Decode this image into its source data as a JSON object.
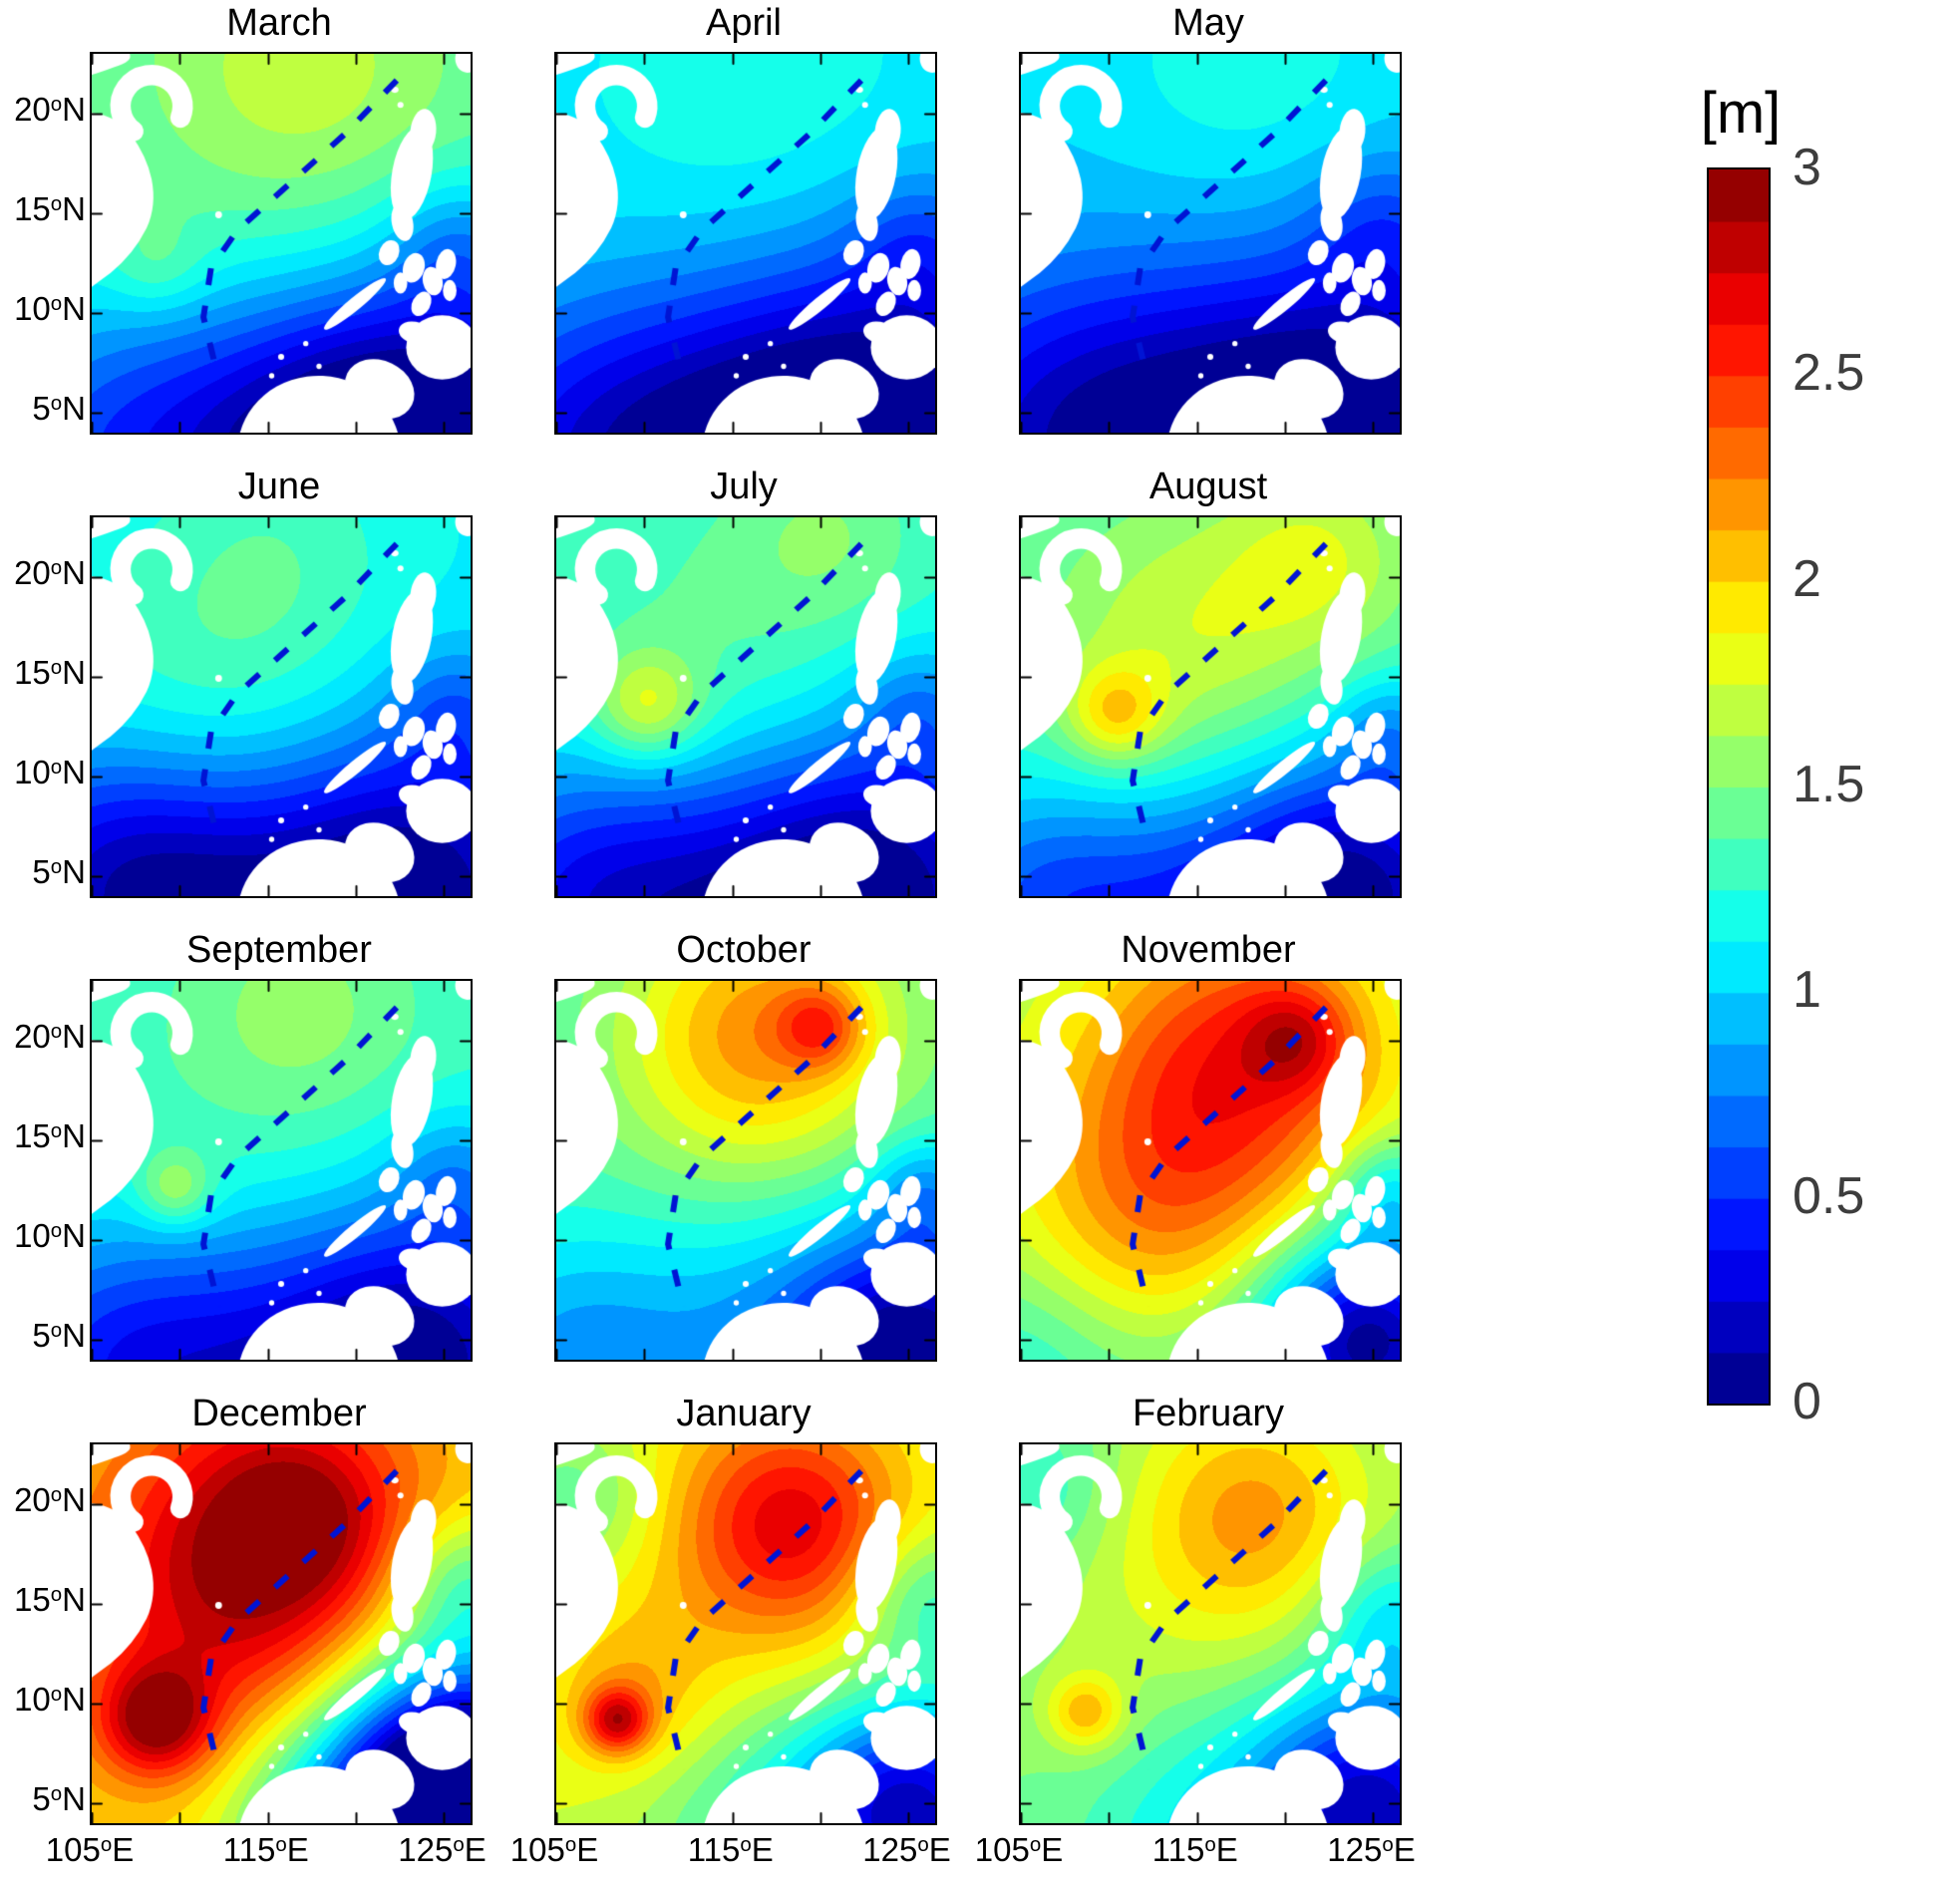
{
  "chart_data": {
    "type": "heatmap",
    "title": "",
    "unit": "m",
    "colormap": "jet",
    "coords_note": "field_model gaussians given in normalized panel coordinates (x right, y down); amplitudes in metres; rendered value clamped to [0,3] and contoured in 0.125 m steps",
    "colorbar": {
      "label": "[m]",
      "range": [
        0,
        3
      ],
      "levels_step": 0.125,
      "ticks": [
        {
          "label": "3",
          "value": 3
        },
        {
          "label": "2.5",
          "value": 2.5
        },
        {
          "label": "2",
          "value": 2
        },
        {
          "label": "1.5",
          "value": 1.5
        },
        {
          "label": "1",
          "value": 1
        },
        {
          "label": "0.5",
          "value": 0.5
        },
        {
          "label": "0",
          "value": 0
        }
      ]
    },
    "x_axis": {
      "range": [
        105,
        126.5
      ],
      "ticks": [
        {
          "label": "105°E",
          "deg": 105
        },
        {
          "label": "115°E",
          "deg": 115
        },
        {
          "label": "125°E",
          "deg": 125
        }
      ],
      "minor_ticks": [
        110,
        120
      ]
    },
    "y_axis": {
      "range": [
        4,
        23
      ],
      "ticks": [
        {
          "label": "20°N",
          "deg": 20
        },
        {
          "label": "15°N",
          "deg": 15
        },
        {
          "label": "10°N",
          "deg": 10
        },
        {
          "label": "5°N",
          "deg": 5
        }
      ]
    },
    "annotations": {
      "dashed_line": {
        "color": "#0014d4",
        "points": [
          [
            0.805,
            0.07
          ],
          [
            0.67,
            0.21
          ],
          [
            0.52,
            0.345
          ],
          [
            0.385,
            0.465
          ],
          [
            0.315,
            0.565
          ],
          [
            0.295,
            0.695
          ],
          [
            0.335,
            0.86
          ]
        ]
      }
    },
    "panels": [
      {
        "month": "March",
        "peak_m": 1.7,
        "low_m": 0.1,
        "field_model": {
          "base_m": 1.35,
          "gaussians": [
            [
              0.55,
              0.05,
              0.3,
              0.35
            ],
            [
              0.17,
              0.56,
              0.09,
              0.22
            ],
            [
              0.95,
              1.0,
              0.3,
              -1.25
            ],
            [
              0.55,
              1.05,
              0.28,
              -0.85
            ],
            [
              0.03,
              1.05,
              0.3,
              -0.7
            ],
            [
              0.97,
              0.5,
              0.13,
              -0.35
            ]
          ]
        }
      },
      {
        "month": "April",
        "peak_m": 1.3,
        "low_m": 0.1,
        "field_model": {
          "base_m": 1.05,
          "gaussians": [
            [
              0.5,
              0.08,
              0.3,
              0.18
            ],
            [
              0.9,
              1.0,
              0.32,
              -1.05
            ],
            [
              0.45,
              1.08,
              0.3,
              -0.75
            ],
            [
              0.02,
              1.05,
              0.28,
              -0.5
            ],
            [
              0.96,
              0.5,
              0.13,
              -0.28
            ]
          ]
        }
      },
      {
        "month": "May",
        "peak_m": 1.2,
        "low_m": 0.1,
        "field_model": {
          "base_m": 1.0,
          "gaussians": [
            [
              0.6,
              0.05,
              0.28,
              0.2
            ],
            [
              0.9,
              1.0,
              0.32,
              -1.0
            ],
            [
              0.4,
              1.05,
              0.32,
              -0.7
            ],
            [
              0.0,
              1.0,
              0.3,
              -0.45
            ],
            [
              0.96,
              0.45,
              0.14,
              -0.3
            ]
          ]
        }
      },
      {
        "month": "June",
        "peak_m": 1.4,
        "low_m": 0.05,
        "field_model": {
          "base_m": 1.1,
          "gaussians": [
            [
              0.35,
              0.4,
              0.3,
              0.28
            ],
            [
              0.5,
              0.05,
              0.22,
              0.15
            ],
            [
              0.85,
              1.0,
              0.3,
              -1.1
            ],
            [
              0.3,
              1.05,
              0.28,
              -0.7
            ],
            [
              0.0,
              0.95,
              0.25,
              -0.55
            ],
            [
              0.96,
              0.5,
              0.12,
              -0.3
            ]
          ]
        }
      },
      {
        "month": "July",
        "peak_m": 1.9,
        "low_m": 0.05,
        "field_model": {
          "base_m": 1.2,
          "gaussians": [
            [
              0.24,
              0.5,
              0.1,
              0.55
            ],
            [
              0.4,
              0.38,
              0.33,
              0.22
            ],
            [
              0.72,
              0.04,
              0.18,
              0.25
            ],
            [
              0.85,
              1.0,
              0.3,
              -1.15
            ],
            [
              0.35,
              1.08,
              0.3,
              -0.7
            ],
            [
              0.0,
              0.98,
              0.25,
              -0.5
            ],
            [
              0.96,
              0.5,
              0.12,
              -0.3
            ]
          ]
        }
      },
      {
        "month": "August",
        "peak_m": 2.2,
        "low_m": 0.1,
        "field_model": {
          "base_m": 1.3,
          "gaussians": [
            [
              0.25,
              0.52,
              0.09,
              0.55
            ],
            [
              0.45,
              0.35,
              0.3,
              0.45
            ],
            [
              0.8,
              0.1,
              0.18,
              0.35
            ],
            [
              0.88,
              1.0,
              0.28,
              -1.2
            ],
            [
              0.4,
              1.1,
              0.28,
              -0.6
            ],
            [
              0.02,
              1.0,
              0.22,
              -0.5
            ],
            [
              0.97,
              0.55,
              0.1,
              -0.3
            ]
          ]
        }
      },
      {
        "month": "September",
        "peak_m": 1.7,
        "low_m": 0.1,
        "field_model": {
          "base_m": 1.25,
          "gaussians": [
            [
              0.22,
              0.55,
              0.07,
              0.45
            ],
            [
              0.5,
              0.3,
              0.35,
              0.15
            ],
            [
              0.55,
              0.05,
              0.2,
              0.2
            ],
            [
              0.88,
              1.0,
              0.3,
              -1.15
            ],
            [
              0.35,
              1.08,
              0.3,
              -0.65
            ],
            [
              0.0,
              1.0,
              0.25,
              -0.5
            ],
            [
              0.96,
              0.5,
              0.12,
              -0.28
            ]
          ]
        }
      },
      {
        "month": "October",
        "peak_m": 2.6,
        "low_m": 0.05,
        "field_model": {
          "base_m": 1.35,
          "gaussians": [
            [
              0.55,
              0.12,
              0.25,
              0.75
            ],
            [
              0.7,
              0.12,
              0.08,
              0.55
            ],
            [
              0.45,
              0.4,
              0.3,
              0.2
            ],
            [
              0.45,
              1.0,
              0.35,
              -0.45
            ],
            [
              0.95,
              1.0,
              0.24,
              -1.3
            ],
            [
              0.0,
              1.0,
              0.22,
              -0.35
            ],
            [
              0.97,
              0.55,
              0.1,
              -0.4
            ]
          ]
        }
      },
      {
        "month": "November",
        "peak_m": 3.0,
        "low_m": 0.1,
        "field_model": {
          "base_m": 1.55,
          "gaussians": [
            [
              0.6,
              0.18,
              0.28,
              0.75
            ],
            [
              0.73,
              0.15,
              0.1,
              0.5
            ],
            [
              0.4,
              0.45,
              0.32,
              0.45
            ],
            [
              0.35,
              0.7,
              0.25,
              0.35
            ],
            [
              0.92,
              0.95,
              0.2,
              -1.45
            ],
            [
              0.5,
              1.05,
              0.3,
              -0.25
            ],
            [
              0.97,
              0.55,
              0.1,
              -0.5
            ],
            [
              0.0,
              1.0,
              0.2,
              -0.3
            ]
          ]
        }
      },
      {
        "month": "December",
        "peak_m": 3.0,
        "low_m": 0.1,
        "field_model": {
          "base_m": 1.95,
          "gaussians": [
            [
              0.48,
              0.25,
              0.3,
              0.85
            ],
            [
              0.55,
              0.2,
              0.15,
              0.35
            ],
            [
              0.17,
              0.73,
              0.1,
              0.85
            ],
            [
              0.3,
              0.55,
              0.3,
              0.35
            ],
            [
              0.95,
              0.97,
              0.22,
              -1.6
            ],
            [
              1.0,
              0.85,
              0.3,
              -1.2
            ],
            [
              0.97,
              0.35,
              0.12,
              -0.45
            ],
            [
              0.6,
              1.02,
              0.2,
              -0.55
            ]
          ]
        }
      },
      {
        "month": "January",
        "peak_m": 2.9,
        "low_m": 0.2,
        "field_model": {
          "base_m": 1.75,
          "gaussians": [
            [
              0.63,
              0.2,
              0.2,
              0.75
            ],
            [
              0.5,
              0.35,
              0.35,
              0.25
            ],
            [
              0.16,
              0.73,
              0.06,
              0.85
            ],
            [
              0.2,
              0.68,
              0.15,
              0.3
            ],
            [
              0.95,
              0.97,
              0.22,
              -1.5
            ],
            [
              0.97,
              0.4,
              0.13,
              -0.5
            ],
            [
              0.55,
              1.02,
              0.25,
              -0.45
            ],
            [
              0.05,
              0.15,
              0.15,
              -0.4
            ]
          ]
        }
      },
      {
        "month": "February",
        "peak_m": 2.2,
        "low_m": 0.2,
        "field_model": {
          "base_m": 1.5,
          "gaussians": [
            [
              0.62,
              0.17,
              0.22,
              0.55
            ],
            [
              0.45,
              0.45,
              0.35,
              0.2
            ],
            [
              0.17,
              0.71,
              0.07,
              0.55
            ],
            [
              0.93,
              0.96,
              0.23,
              -1.3
            ],
            [
              0.97,
              0.45,
              0.13,
              -0.45
            ],
            [
              0.5,
              1.05,
              0.25,
              -0.4
            ],
            [
              0.03,
              0.12,
              0.15,
              -0.3
            ]
          ]
        }
      }
    ]
  }
}
